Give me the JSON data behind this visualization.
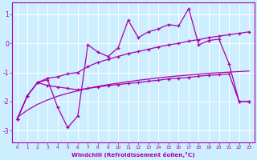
{
  "xlabel": "Windchill (Refroidissement éolien,°C)",
  "x_values": [
    0,
    1,
    2,
    3,
    4,
    5,
    6,
    7,
    8,
    9,
    10,
    11,
    12,
    13,
    14,
    15,
    16,
    17,
    18,
    19,
    20,
    21,
    22,
    23
  ],
  "line_jagged": [
    -2.6,
    -1.8,
    -1.35,
    -1.25,
    -2.2,
    -2.9,
    -2.5,
    -0.05,
    -0.3,
    -0.45,
    -0.15,
    0.8,
    0.2,
    0.4,
    0.5,
    0.65,
    0.6,
    1.2,
    -0.05,
    0.1,
    0.15,
    -0.7,
    -2.0,
    -2.0
  ],
  "line_upper_trend": [
    -2.6,
    -1.8,
    -1.35,
    -1.2,
    -1.15,
    -1.05,
    -1.0,
    -0.8,
    -0.65,
    -0.55,
    -0.45,
    -0.35,
    -0.28,
    -0.2,
    -0.12,
    -0.05,
    0.0,
    0.08,
    0.13,
    0.2,
    0.25,
    0.3,
    0.35,
    0.4
  ],
  "line_lower_trend": [
    -2.6,
    -1.8,
    -1.35,
    -1.45,
    -1.5,
    -1.55,
    -1.6,
    -1.55,
    -1.5,
    -1.45,
    -1.42,
    -1.38,
    -1.35,
    -1.3,
    -1.27,
    -1.22,
    -1.2,
    -1.17,
    -1.13,
    -1.1,
    -1.08,
    -1.05,
    -2.0,
    -2.0
  ],
  "line_straight": [
    -2.55,
    -2.3,
    -2.1,
    -1.95,
    -1.82,
    -1.72,
    -1.63,
    -1.55,
    -1.48,
    -1.42,
    -1.37,
    -1.32,
    -1.27,
    -1.23,
    -1.19,
    -1.15,
    -1.12,
    -1.09,
    -1.06,
    -1.03,
    -1.01,
    -0.99,
    -0.97,
    -0.95
  ],
  "bg_color": "#cceeff",
  "line_color": "#aa00aa",
  "grid_color": "#ffffff",
  "ylim": [
    -3.4,
    1.4
  ],
  "xlim": [
    -0.5,
    23.5
  ],
  "yticks": [
    -3,
    -2,
    -1,
    0,
    1
  ],
  "xticks": [
    0,
    1,
    2,
    3,
    4,
    5,
    6,
    7,
    8,
    9,
    10,
    11,
    12,
    13,
    14,
    15,
    16,
    17,
    18,
    19,
    20,
    21,
    22,
    23
  ]
}
